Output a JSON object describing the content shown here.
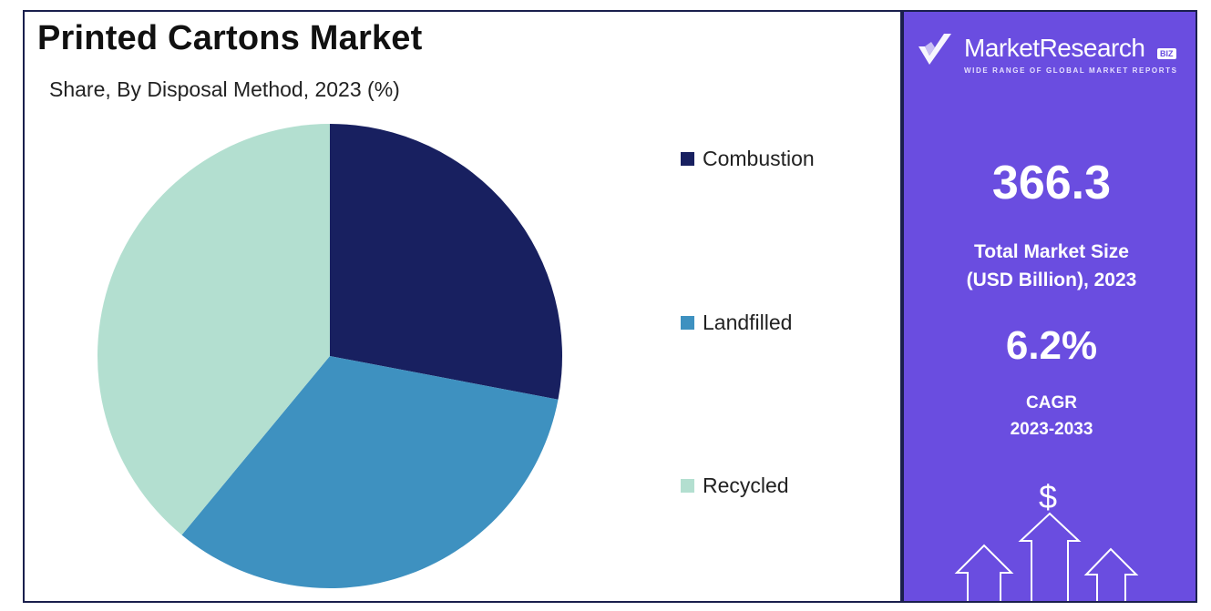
{
  "title": "Printed Cartons Market",
  "subtitle": "Share, By Disposal Method, 2023 (%)",
  "chart_data": {
    "type": "pie",
    "categories": [
      "Combustion",
      "Landfilled",
      "Recycled"
    ],
    "values": [
      28,
      33,
      39
    ],
    "colors": [
      "#182060",
      "#3e91c0",
      "#b3dfd0"
    ],
    "start_angle_deg": 0,
    "direction": "clockwise",
    "legend_placement": "right"
  },
  "sidebar": {
    "brand_name": "MarketResearch",
    "brand_badge": "BIZ",
    "brand_tagline": "WIDE RANGE OF GLOBAL MARKET REPORTS",
    "market_size_value": "366.3",
    "market_size_label_line1": "Total Market Size",
    "market_size_label_line2": "(USD Billion), 2023",
    "cagr_value": "6.2%",
    "cagr_label_line1": "CAGR",
    "cagr_label_line2": "2023-2033",
    "dollar_symbol": "$",
    "icons": [
      "checkmark-logo-icon",
      "dollar-icon",
      "up-arrows-icon"
    ],
    "background_color": "#6a4de0"
  }
}
